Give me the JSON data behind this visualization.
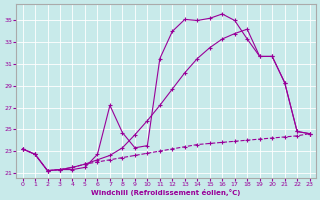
{
  "xlabel": "Windchill (Refroidissement éolien,°C)",
  "background_color": "#c8eaea",
  "line_color": "#990099",
  "xlim": [
    -0.5,
    23.5
  ],
  "ylim": [
    20.5,
    36.5
  ],
  "yticks": [
    21,
    23,
    25,
    27,
    29,
    31,
    33,
    35
  ],
  "xticks": [
    0,
    1,
    2,
    3,
    4,
    5,
    6,
    7,
    8,
    9,
    10,
    11,
    12,
    13,
    14,
    15,
    16,
    17,
    18,
    19,
    20,
    21,
    22,
    23
  ],
  "curve1_x": [
    0,
    1,
    2,
    3,
    4,
    5,
    6,
    7,
    8,
    9,
    10,
    11,
    12,
    13,
    14,
    15,
    16,
    17,
    18,
    19,
    20,
    21,
    22,
    23
  ],
  "curve1_y": [
    23.2,
    22.7,
    21.2,
    21.3,
    21.3,
    21.5,
    22.7,
    27.2,
    24.7,
    23.3,
    23.5,
    31.5,
    34.0,
    35.1,
    35.0,
    35.2,
    35.6,
    35.0,
    33.3,
    31.7,
    31.7,
    29.3,
    24.8,
    24.6
  ],
  "curve2_x": [
    0,
    1,
    2,
    3,
    4,
    5,
    6,
    7,
    8,
    9,
    10,
    11,
    12,
    13,
    14,
    15,
    16,
    17,
    18,
    19,
    20,
    21,
    22,
    23
  ],
  "curve2_y": [
    23.2,
    22.7,
    21.2,
    21.3,
    21.5,
    21.8,
    22.2,
    22.6,
    23.3,
    24.5,
    25.8,
    27.2,
    28.7,
    30.2,
    31.5,
    32.5,
    33.3,
    33.8,
    34.2,
    31.7,
    31.7,
    29.3,
    24.8,
    24.6
  ],
  "curve3_x": [
    0,
    1,
    2,
    3,
    4,
    5,
    6,
    7,
    8,
    9,
    10,
    11,
    12,
    13,
    14,
    15,
    16,
    17,
    18,
    19,
    20,
    21,
    22,
    23
  ],
  "curve3_y": [
    23.2,
    22.7,
    21.2,
    21.3,
    21.5,
    21.8,
    22.0,
    22.2,
    22.4,
    22.6,
    22.8,
    23.0,
    23.2,
    23.4,
    23.6,
    23.7,
    23.8,
    23.9,
    24.0,
    24.1,
    24.2,
    24.3,
    24.4,
    24.6
  ]
}
